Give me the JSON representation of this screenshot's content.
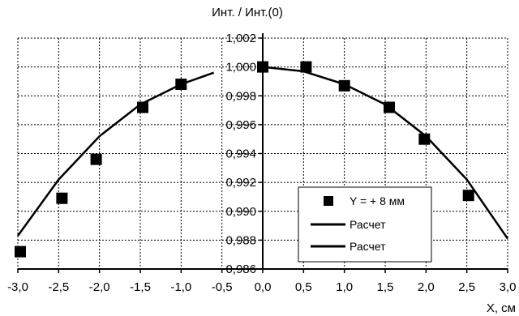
{
  "chart_data": {
    "type": "scatter",
    "title": "",
    "ylabel": "Инт. / Инт.(0)",
    "xlabel": "X, см",
    "xlim": [
      -3.0,
      3.0
    ],
    "ylim": [
      0.986,
      1.002
    ],
    "x_ticks": [
      "-3,0",
      "-2,5",
      "-2,0",
      "-1,5",
      "-1,0",
      "-0,5",
      "0,0",
      "0,5",
      "1,0",
      "1,5",
      "2,0",
      "2,5",
      "3,0"
    ],
    "y_ticks": [
      "0,986",
      "0,988",
      "0,990",
      "0,992",
      "0,994",
      "0,996",
      "0,998",
      "1,000",
      "1,002"
    ],
    "grid": true,
    "legend_position": "bottom-right",
    "series": [
      {
        "name": "Y = + 8 мм",
        "kind": "marker",
        "x": [
          -2.97,
          -2.46,
          -2.04,
          -1.47,
          -1.0,
          0.0,
          0.53,
          1.0,
          1.55,
          1.98,
          2.52
        ],
        "y": [
          0.9872,
          0.9909,
          0.9936,
          0.9972,
          0.9988,
          1.0,
          1.0,
          0.9987,
          0.9972,
          0.995,
          0.9911
        ]
      },
      {
        "name": "Расчет",
        "kind": "line",
        "x": [
          -3.0,
          -2.5,
          -2.0,
          -1.5,
          -1.0,
          -0.6
        ],
        "y": [
          0.9883,
          0.9922,
          0.9952,
          0.9974,
          0.9988,
          0.9996
        ]
      },
      {
        "name": "Расчет",
        "kind": "line",
        "x": [
          0.0,
          0.5,
          1.0,
          1.5,
          2.0,
          2.5,
          3.0
        ],
        "y": [
          1.0,
          0.9997,
          0.9988,
          0.9974,
          0.9952,
          0.9922,
          0.9881
        ]
      }
    ]
  }
}
